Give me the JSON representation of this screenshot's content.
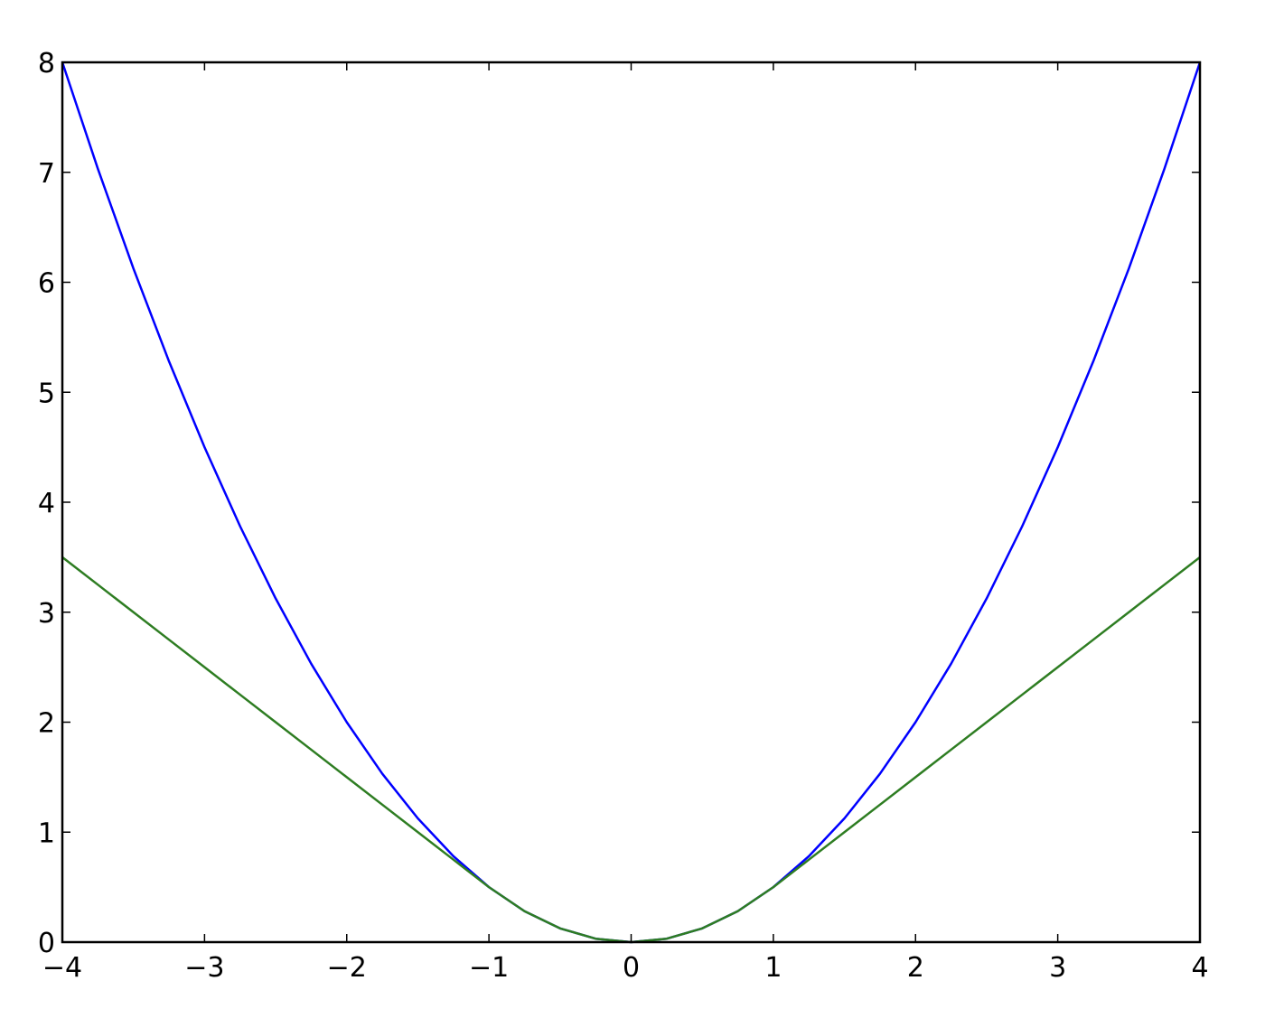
{
  "chart_data": {
    "type": "line",
    "title": "",
    "xlabel": "",
    "ylabel": "",
    "xlim": [
      -4,
      4
    ],
    "ylim": [
      0,
      8
    ],
    "grid": false,
    "x_ticks": [
      "−4",
      "−3",
      "−2",
      "−1",
      "0",
      "1",
      "2",
      "3",
      "4"
    ],
    "x_tick_values": [
      -4,
      -3,
      -2,
      -1,
      0,
      1,
      2,
      3,
      4
    ],
    "y_ticks": [
      "0",
      "1",
      "2",
      "3",
      "4",
      "5",
      "6",
      "7",
      "8"
    ],
    "y_tick_values": [
      0,
      1,
      2,
      3,
      4,
      5,
      6,
      7,
      8
    ],
    "x": [
      -4,
      -3.75,
      -3.5,
      -3.25,
      -3,
      -2.75,
      -2.5,
      -2.25,
      -2,
      -1.75,
      -1.5,
      -1.25,
      -1,
      -0.75,
      -0.5,
      -0.25,
      0,
      0.25,
      0.5,
      0.75,
      1,
      1.25,
      1.5,
      1.75,
      2,
      2.25,
      2.5,
      2.75,
      3,
      3.25,
      3.5,
      3.75,
      4
    ],
    "series": [
      {
        "color": "#0000ff",
        "values": [
          8,
          7.03125,
          6.125,
          5.28125,
          4.5,
          3.78125,
          3.125,
          2.53125,
          2,
          1.53125,
          1.125,
          0.78125,
          0.5,
          0.28125,
          0.125,
          0.03125,
          0,
          0.03125,
          0.125,
          0.28125,
          0.5,
          0.78125,
          1.125,
          1.53125,
          2,
          2.53125,
          3.125,
          3.78125,
          4.5,
          5.28125,
          6.125,
          7.03125,
          8
        ]
      },
      {
        "color": "#2e7d22",
        "values": [
          3.5,
          3.25,
          3,
          2.75,
          2.5,
          2.25,
          2,
          1.75,
          1.5,
          1.25,
          1,
          0.75,
          0.5,
          0.28125,
          0.125,
          0.03125,
          0,
          0.03125,
          0.125,
          0.28125,
          0.5,
          0.75,
          1,
          1.25,
          1.5,
          1.75,
          2,
          2.25,
          2.5,
          2.75,
          3,
          3.25,
          3.5
        ]
      }
    ]
  }
}
